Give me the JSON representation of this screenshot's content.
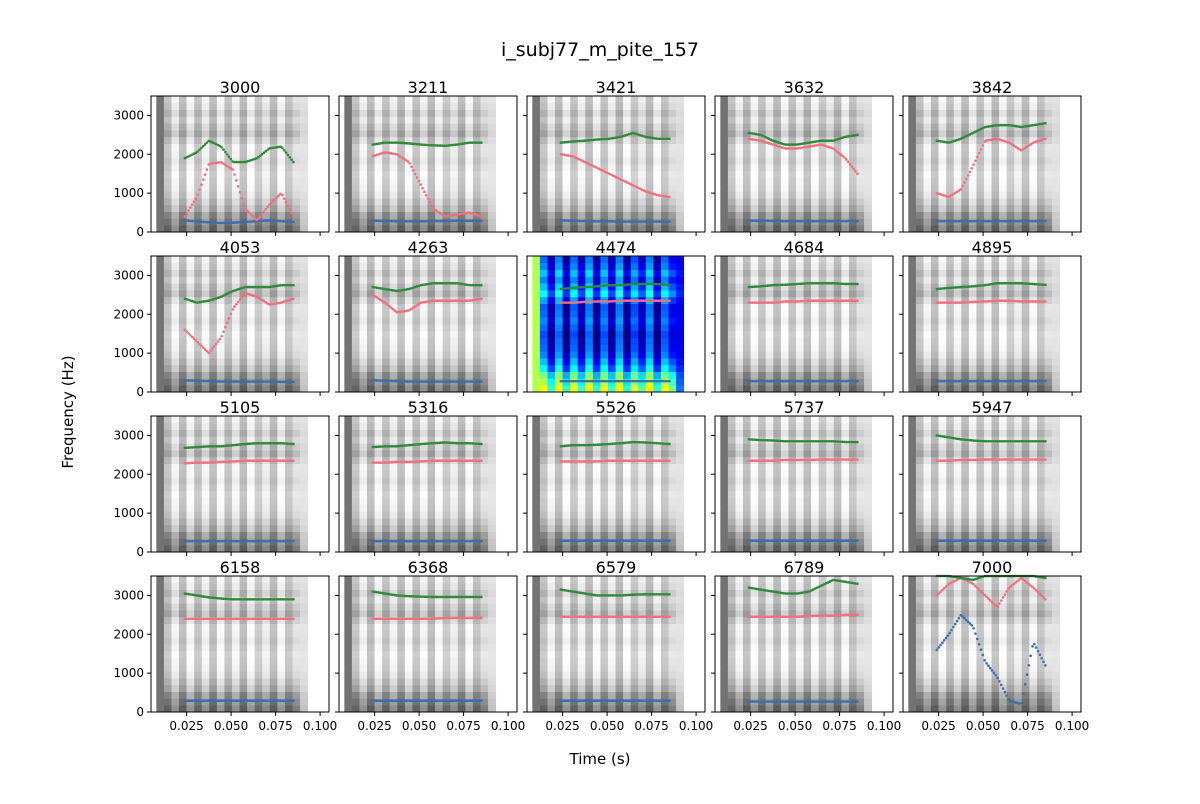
{
  "chart_data": {
    "type": "scatter",
    "title": "i_subj77_m_pite_157",
    "xlabel": "Time (s)",
    "ylabel": "Frequency (Hz)",
    "xlim": [
      0.005,
      0.105
    ],
    "ylim": [
      0,
      3500
    ],
    "x_ticks": [
      "0.025",
      "0.050",
      "0.075",
      "0.100"
    ],
    "y_ticks": [
      "0",
      "1000",
      "2000",
      "3000"
    ],
    "background": "grayscale spectrogram (jet colormap in panel 4474)",
    "series_colors": {
      "F1": "#3a6fb0",
      "F2": "#f07080",
      "F3": "#2f8a3a"
    },
    "panels": [
      {
        "label": "3000",
        "colormap": "gray",
        "f1": [
          300,
          270,
          250,
          230,
          240,
          260,
          280,
          300,
          280,
          260
        ],
        "f2": [
          400,
          900,
          1750,
          1800,
          1600,
          600,
          300,
          700,
          1000,
          400
        ],
        "f3": [
          1900,
          2050,
          2350,
          2200,
          1800,
          1800,
          1900,
          2150,
          2200,
          1800
        ]
      },
      {
        "label": "3211",
        "colormap": "gray",
        "f1": [
          290,
          285,
          280,
          275,
          275,
          280,
          285,
          290,
          290,
          285
        ],
        "f2": [
          1950,
          2050,
          2000,
          1800,
          1200,
          600,
          400,
          450,
          500,
          400
        ],
        "f3": [
          2250,
          2300,
          2300,
          2280,
          2250,
          2230,
          2220,
          2250,
          2300,
          2300
        ]
      },
      {
        "label": "3421",
        "colormap": "gray",
        "f1": [
          300,
          290,
          280,
          275,
          275,
          270,
          270,
          270,
          270,
          270
        ],
        "f2": [
          2000,
          1950,
          1800,
          1650,
          1500,
          1350,
          1200,
          1050,
          950,
          900
        ],
        "f3": [
          2300,
          2330,
          2350,
          2380,
          2400,
          2450,
          2550,
          2450,
          2400,
          2400
        ]
      },
      {
        "label": "3632",
        "colormap": "gray",
        "f1": [
          290,
          290,
          285,
          280,
          280,
          280,
          280,
          280,
          280,
          280
        ],
        "f2": [
          2400,
          2350,
          2250,
          2150,
          2150,
          2200,
          2250,
          2150,
          1900,
          1500
        ],
        "f3": [
          2550,
          2500,
          2350,
          2250,
          2250,
          2300,
          2350,
          2350,
          2450,
          2500
        ]
      },
      {
        "label": "3842",
        "colormap": "gray",
        "f1": [
          280,
          280,
          280,
          280,
          280,
          280,
          280,
          280,
          280,
          280
        ],
        "f2": [
          1000,
          900,
          1100,
          1700,
          2350,
          2400,
          2300,
          2100,
          2300,
          2400
        ],
        "f3": [
          2350,
          2300,
          2400,
          2550,
          2700,
          2750,
          2750,
          2700,
          2750,
          2800
        ]
      },
      {
        "label": "4053",
        "colormap": "gray",
        "f1": [
          300,
          290,
          280,
          270,
          270,
          270,
          270,
          270,
          260,
          260
        ],
        "f2": [
          1600,
          1300,
          1000,
          1400,
          2150,
          2550,
          2450,
          2250,
          2300,
          2400
        ],
        "f3": [
          2400,
          2300,
          2350,
          2450,
          2600,
          2700,
          2700,
          2700,
          2750,
          2750
        ]
      },
      {
        "label": "4263",
        "colormap": "gray",
        "f1": [
          300,
          290,
          280,
          270,
          270,
          270,
          270,
          270,
          270,
          270
        ],
        "f2": [
          2500,
          2300,
          2050,
          2100,
          2300,
          2350,
          2350,
          2350,
          2350,
          2400
        ],
        "f3": [
          2700,
          2650,
          2600,
          2650,
          2750,
          2800,
          2800,
          2800,
          2750,
          2750
        ]
      },
      {
        "label": "4474",
        "colormap": "jet",
        "f1": [
          280,
          280,
          280,
          280,
          280,
          280,
          280,
          280,
          280,
          280
        ],
        "f2": [
          2300,
          2300,
          2320,
          2330,
          2330,
          2350,
          2350,
          2350,
          2350,
          2350
        ],
        "f3": [
          2650,
          2680,
          2700,
          2720,
          2750,
          2750,
          2780,
          2780,
          2780,
          2750
        ]
      },
      {
        "label": "4684",
        "colormap": "gray",
        "f1": [
          280,
          280,
          280,
          280,
          280,
          280,
          280,
          280,
          280,
          280
        ],
        "f2": [
          2300,
          2300,
          2300,
          2330,
          2330,
          2350,
          2350,
          2350,
          2350,
          2350
        ],
        "f3": [
          2700,
          2720,
          2750,
          2760,
          2780,
          2800,
          2800,
          2800,
          2780,
          2780
        ]
      },
      {
        "label": "4895",
        "colormap": "gray",
        "f1": [
          280,
          280,
          280,
          280,
          280,
          280,
          280,
          280,
          280,
          280
        ],
        "f2": [
          2300,
          2300,
          2300,
          2320,
          2330,
          2350,
          2350,
          2330,
          2330,
          2330
        ],
        "f3": [
          2650,
          2680,
          2700,
          2720,
          2750,
          2800,
          2800,
          2800,
          2780,
          2760
        ]
      },
      {
        "label": "5105",
        "colormap": "gray",
        "f1": [
          280,
          280,
          280,
          280,
          280,
          280,
          280,
          280,
          280,
          280
        ],
        "f2": [
          2280,
          2300,
          2300,
          2320,
          2330,
          2350,
          2350,
          2350,
          2350,
          2350
        ],
        "f3": [
          2680,
          2700,
          2720,
          2720,
          2750,
          2780,
          2800,
          2800,
          2800,
          2780
        ]
      },
      {
        "label": "5316",
        "colormap": "gray",
        "f1": [
          280,
          280,
          280,
          280,
          280,
          280,
          280,
          280,
          280,
          280
        ],
        "f2": [
          2300,
          2300,
          2320,
          2320,
          2330,
          2350,
          2350,
          2350,
          2350,
          2350
        ],
        "f3": [
          2700,
          2720,
          2720,
          2750,
          2780,
          2800,
          2820,
          2800,
          2800,
          2780
        ]
      },
      {
        "label": "5526",
        "colormap": "gray",
        "f1": [
          290,
          290,
          290,
          290,
          290,
          290,
          290,
          290,
          290,
          290
        ],
        "f2": [
          2330,
          2330,
          2330,
          2330,
          2350,
          2350,
          2350,
          2350,
          2350,
          2350
        ],
        "f3": [
          2720,
          2750,
          2750,
          2760,
          2780,
          2800,
          2830,
          2820,
          2800,
          2780
        ]
      },
      {
        "label": "5737",
        "colormap": "gray",
        "f1": [
          290,
          290,
          290,
          290,
          290,
          290,
          290,
          290,
          290,
          290
        ],
        "f2": [
          2350,
          2350,
          2350,
          2370,
          2370,
          2370,
          2380,
          2380,
          2380,
          2380
        ],
        "f3": [
          2900,
          2880,
          2870,
          2850,
          2850,
          2850,
          2850,
          2850,
          2830,
          2830
        ]
      },
      {
        "label": "5947",
        "colormap": "gray",
        "f1": [
          290,
          290,
          290,
          290,
          290,
          290,
          290,
          290,
          290,
          290
        ],
        "f2": [
          2350,
          2350,
          2370,
          2370,
          2380,
          2380,
          2380,
          2380,
          2380,
          2380
        ],
        "f3": [
          3000,
          2950,
          2900,
          2870,
          2850,
          2850,
          2850,
          2850,
          2850,
          2850
        ]
      },
      {
        "label": "6158",
        "colormap": "gray",
        "f1": [
          290,
          290,
          290,
          290,
          290,
          290,
          290,
          290,
          290,
          290
        ],
        "f2": [
          2400,
          2400,
          2400,
          2400,
          2400,
          2400,
          2400,
          2400,
          2400,
          2400
        ],
        "f3": [
          3050,
          3000,
          2950,
          2920,
          2900,
          2900,
          2900,
          2900,
          2900,
          2900
        ]
      },
      {
        "label": "6368",
        "colormap": "gray",
        "f1": [
          290,
          290,
          290,
          290,
          290,
          290,
          290,
          290,
          290,
          290
        ],
        "f2": [
          2400,
          2400,
          2400,
          2400,
          2400,
          2400,
          2420,
          2420,
          2420,
          2420
        ],
        "f3": [
          3100,
          3050,
          3000,
          2980,
          2970,
          2960,
          2960,
          2960,
          2960,
          2960
        ]
      },
      {
        "label": "6579",
        "colormap": "gray",
        "f1": [
          290,
          290,
          290,
          290,
          290,
          290,
          290,
          290,
          290,
          290
        ],
        "f2": [
          2450,
          2450,
          2450,
          2450,
          2450,
          2450,
          2450,
          2450,
          2450,
          2450
        ],
        "f3": [
          3150,
          3100,
          3050,
          3000,
          3000,
          3000,
          3020,
          3030,
          3030,
          3030
        ]
      },
      {
        "label": "6789",
        "colormap": "gray",
        "f1": [
          270,
          270,
          270,
          270,
          270,
          270,
          270,
          270,
          270,
          270
        ],
        "f2": [
          2450,
          2450,
          2450,
          2450,
          2450,
          2470,
          2480,
          2480,
          2500,
          2500
        ],
        "f3": [
          3200,
          3150,
          3100,
          3050,
          3050,
          3100,
          3250,
          3400,
          3350,
          3300
        ]
      },
      {
        "label": "7000",
        "colormap": "gray",
        "f1": [
          1600,
          2000,
          2500,
          2200,
          1300,
          900,
          300,
          200,
          1800,
          1200
        ],
        "f2": [
          3000,
          3300,
          3450,
          3300,
          3000,
          2700,
          3200,
          3450,
          3200,
          2900
        ],
        "f3": [
          3500,
          3500,
          3450,
          3400,
          3500,
          3500,
          3500,
          3500,
          3500,
          3450
        ]
      }
    ]
  }
}
